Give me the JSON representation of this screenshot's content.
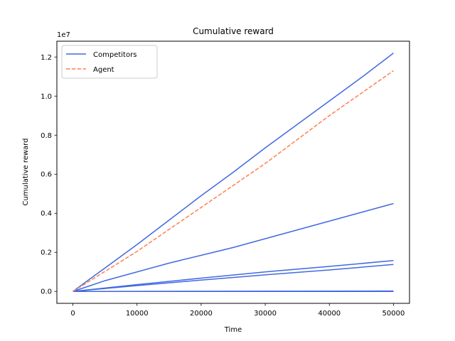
{
  "chart_data": {
    "type": "line",
    "title": "Cumulative reward",
    "xlabel": "Time",
    "ylabel": "Cumulative reward",
    "y_scale_label": "1e7",
    "xlim": [
      -2500,
      52500
    ],
    "ylim": [
      -0.061,
      1.281
    ],
    "x_ticks": [
      0,
      10000,
      20000,
      30000,
      40000,
      50000
    ],
    "y_ticks": [
      0.0,
      0.2,
      0.4,
      0.6,
      0.8,
      1.0,
      1.2
    ],
    "y_tick_labels": [
      "0.0",
      "0.2",
      "0.4",
      "0.6",
      "0.8",
      "1.0",
      "1.2"
    ],
    "grid": false,
    "legend_position": "upper-left",
    "legend": [
      {
        "label": "Competitors",
        "color": "#4169e1",
        "style": "solid"
      },
      {
        "label": "Agent",
        "color": "#ff7f50",
        "style": "dashed"
      }
    ],
    "series": [
      {
        "group": "Competitors",
        "color": "#4169e1",
        "style": "solid",
        "x": [
          0,
          5000,
          10000,
          15000,
          20000,
          25000,
          30000,
          35000,
          40000,
          45000,
          50000
        ],
        "y": [
          0,
          0.12,
          0.24,
          0.365,
          0.49,
          0.61,
          0.735,
          0.855,
          0.975,
          1.095,
          1.22
        ]
      },
      {
        "group": "Competitors",
        "color": "#4169e1",
        "style": "solid",
        "x": [
          0,
          5000,
          10000,
          15000,
          20000,
          25000,
          30000,
          35000,
          40000,
          45000,
          50000
        ],
        "y": [
          0,
          0.055,
          0.1,
          0.145,
          0.185,
          0.225,
          0.27,
          0.315,
          0.36,
          0.405,
          0.45
        ]
      },
      {
        "group": "Competitors",
        "color": "#4169e1",
        "style": "solid",
        "x": [
          0,
          10000,
          20000,
          30000,
          40000,
          50000
        ],
        "y": [
          0,
          0.035,
          0.068,
          0.1,
          0.128,
          0.158
        ]
      },
      {
        "group": "Competitors",
        "color": "#4169e1",
        "style": "solid",
        "x": [
          0,
          10000,
          20000,
          30000,
          40000,
          50000
        ],
        "y": [
          0,
          0.03,
          0.058,
          0.085,
          0.11,
          0.138
        ]
      },
      {
        "group": "Competitors",
        "color": "#4169e1",
        "style": "solid",
        "x": [
          0,
          50000
        ],
        "y": [
          0,
          0.002
        ]
      },
      {
        "group": "Competitors",
        "color": "#4169e1",
        "style": "solid",
        "x": [
          0,
          50000
        ],
        "y": [
          0,
          0.0
        ]
      },
      {
        "name": "Agent",
        "color": "#ff7f50",
        "style": "dashed",
        "x": [
          0,
          10000,
          20000,
          30000,
          40000,
          50000
        ],
        "y": [
          0,
          0.205,
          0.43,
          0.655,
          0.9,
          1.13
        ]
      }
    ]
  }
}
